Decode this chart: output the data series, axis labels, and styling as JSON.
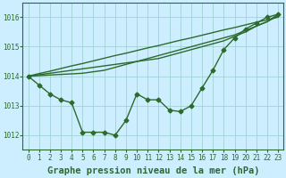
{
  "title": "Graphe pression niveau de la mer (hPa)",
  "background_color": "#cceeff",
  "plot_bg_color": "#cceeff",
  "grid_color": "#99cccc",
  "line_color": "#2d6a2d",
  "xlim": [
    -0.5,
    23.5
  ],
  "ylim": [
    1011.5,
    1016.5
  ],
  "yticks": [
    1012,
    1013,
    1014,
    1015,
    1016
  ],
  "xticks": [
    0,
    1,
    2,
    3,
    4,
    5,
    6,
    7,
    8,
    9,
    10,
    11,
    12,
    13,
    14,
    15,
    16,
    17,
    18,
    19,
    20,
    21,
    22,
    23
  ],
  "wavy_series": [
    1014.0,
    1013.7,
    1013.4,
    1013.2,
    1013.1,
    1012.1,
    1012.1,
    1012.1,
    1012.0,
    1012.5,
    1013.4,
    1013.2,
    1013.2,
    1012.85,
    1012.8,
    1013.0,
    1013.6,
    1014.2,
    1014.9,
    1015.3,
    1015.6,
    1015.8,
    1016.0,
    1016.1
  ],
  "straight_series": [
    [
      1014.0,
      1014.09,
      1014.17,
      1014.26,
      1014.35,
      1014.43,
      1014.52,
      1014.61,
      1014.7,
      1014.78,
      1014.87,
      1014.96,
      1015.04,
      1015.13,
      1015.22,
      1015.3,
      1015.39,
      1015.48,
      1015.57,
      1015.65,
      1015.74,
      1015.83,
      1015.91,
      1016.0
    ],
    [
      1014.0,
      1014.05,
      1014.1,
      1014.15,
      1014.2,
      1014.25,
      1014.3,
      1014.35,
      1014.4,
      1014.45,
      1014.5,
      1014.55,
      1014.6,
      1014.7,
      1014.8,
      1014.9,
      1015.0,
      1015.1,
      1015.2,
      1015.35,
      1015.5,
      1015.7,
      1015.85,
      1016.05
    ],
    [
      1014.0,
      1014.02,
      1014.04,
      1014.06,
      1014.08,
      1014.1,
      1014.15,
      1014.2,
      1014.3,
      1014.4,
      1014.5,
      1014.6,
      1014.7,
      1014.8,
      1014.9,
      1015.0,
      1015.1,
      1015.2,
      1015.3,
      1015.4,
      1015.55,
      1015.7,
      1015.85,
      1016.1
    ]
  ],
  "marker_size": 2.5,
  "line_width": 1.0,
  "title_fontsize": 7.5,
  "tick_fontsize": 5.5
}
